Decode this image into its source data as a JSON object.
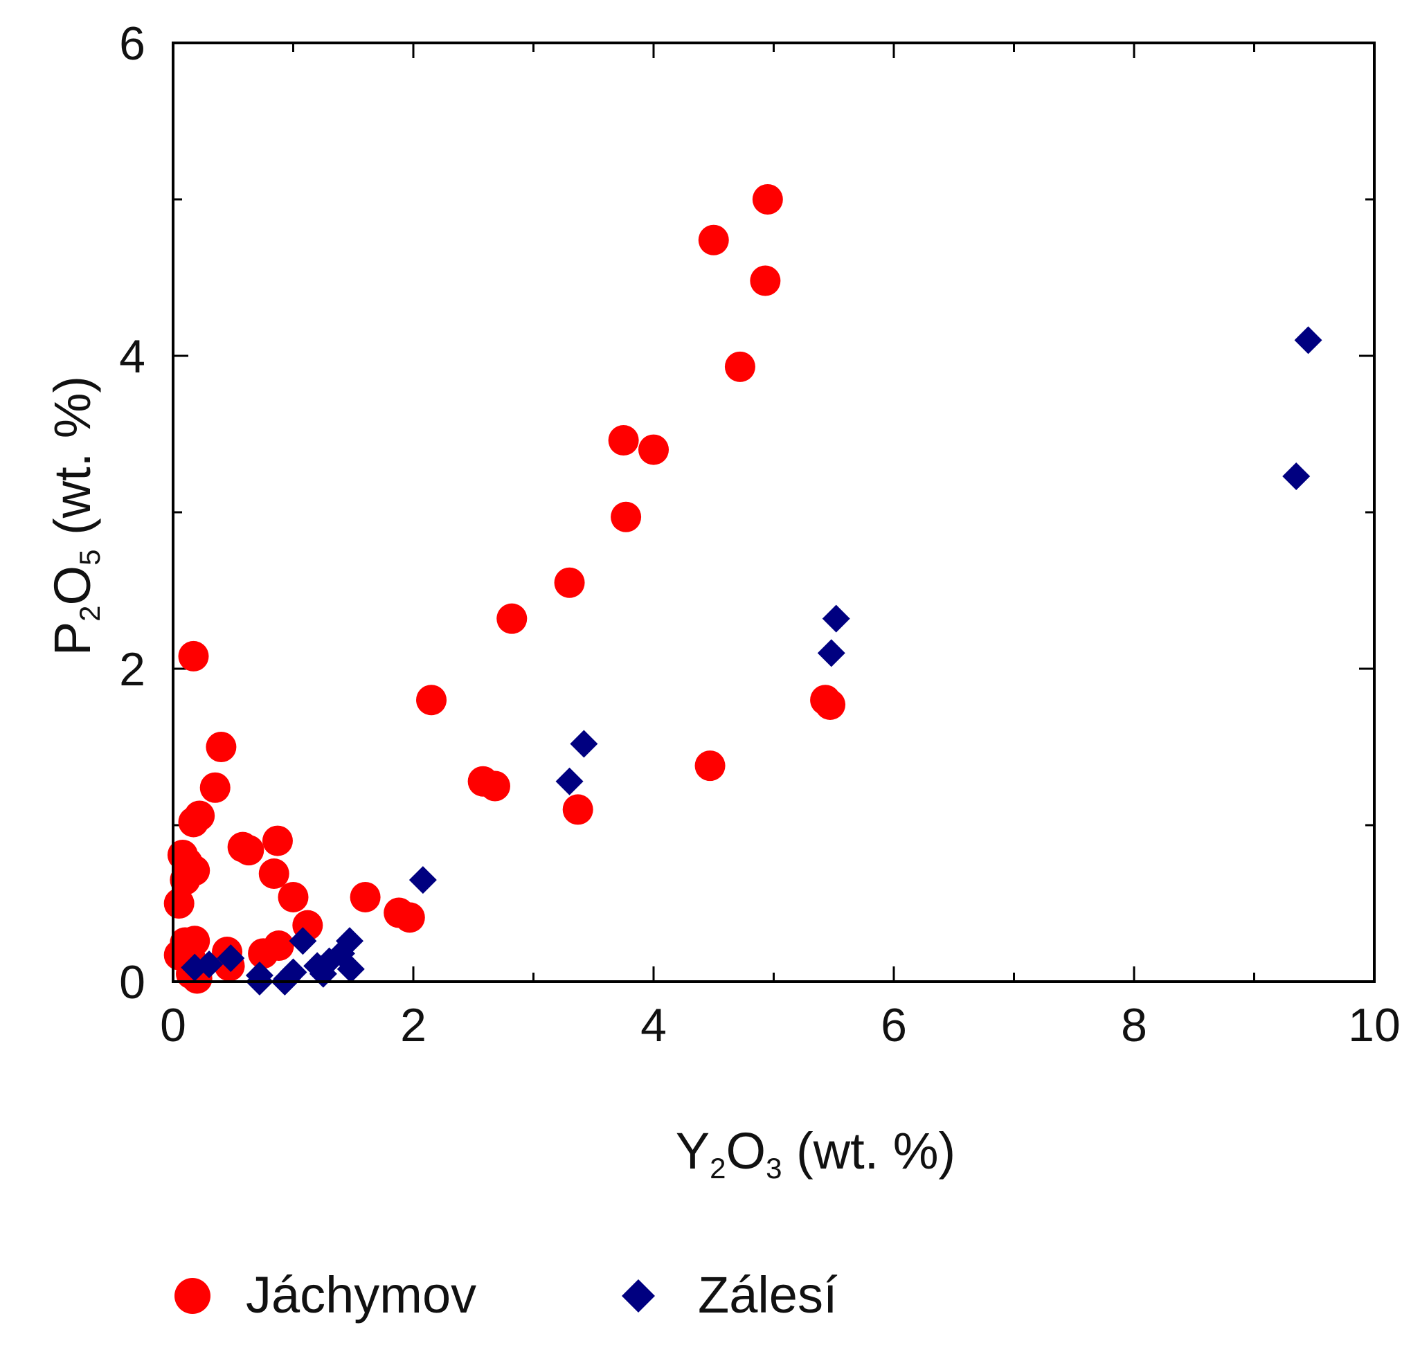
{
  "chart_data": {
    "type": "scatter",
    "title": "",
    "xlabel": {
      "base1": "Y",
      "sub1": "2",
      "base2": "O",
      "sub2": "3",
      "suffix": " (wt. %)"
    },
    "ylabel": {
      "base1": "P",
      "sub1": "2",
      "base2": "O",
      "sub2": "5",
      "suffix": " (wt. %)"
    },
    "xlim": [
      0,
      10
    ],
    "ylim": [
      0,
      6
    ],
    "x_major_ticks": [
      0,
      2,
      4,
      6,
      8,
      10
    ],
    "x_tick_labels": [
      "0",
      "2",
      "4",
      "6",
      "8",
      "10"
    ],
    "x_minor_ticks": [
      1,
      3,
      5,
      7,
      9
    ],
    "y_major_ticks": [
      0,
      2,
      4,
      6
    ],
    "y_tick_labels": [
      "0",
      "2",
      "4",
      "6"
    ],
    "y_minor_ticks": [
      1,
      3,
      5
    ],
    "grid": false,
    "legend_position": "bottom",
    "series": [
      {
        "name": "Jáchymov",
        "marker": "circle",
        "color": "#ff0000",
        "points": [
          [
            4.95,
            5.0
          ],
          [
            4.5,
            4.74
          ],
          [
            4.93,
            4.48
          ],
          [
            4.72,
            3.93
          ],
          [
            3.75,
            3.46
          ],
          [
            4.0,
            3.4
          ],
          [
            3.77,
            2.97
          ],
          [
            3.3,
            2.55
          ],
          [
            2.82,
            2.32
          ],
          [
            0.17,
            2.08
          ],
          [
            2.15,
            1.8
          ],
          [
            5.43,
            1.8
          ],
          [
            5.47,
            1.77
          ],
          [
            0.4,
            1.5
          ],
          [
            4.47,
            1.38
          ],
          [
            2.58,
            1.28
          ],
          [
            2.68,
            1.25
          ],
          [
            0.35,
            1.24
          ],
          [
            3.37,
            1.1
          ],
          [
            0.22,
            1.06
          ],
          [
            0.17,
            1.02
          ],
          [
            0.87,
            0.9
          ],
          [
            0.58,
            0.86
          ],
          [
            0.63,
            0.84
          ],
          [
            0.08,
            0.81
          ],
          [
            0.12,
            0.76
          ],
          [
            0.18,
            0.71
          ],
          [
            0.1,
            0.65
          ],
          [
            0.84,
            0.69
          ],
          [
            1.0,
            0.54
          ],
          [
            1.6,
            0.54
          ],
          [
            0.05,
            0.5
          ],
          [
            1.88,
            0.44
          ],
          [
            1.97,
            0.41
          ],
          [
            1.12,
            0.36
          ],
          [
            0.05,
            0.17
          ],
          [
            0.18,
            0.26
          ],
          [
            0.1,
            0.25
          ],
          [
            0.45,
            0.19
          ],
          [
            0.75,
            0.18
          ],
          [
            0.88,
            0.23
          ],
          [
            0.15,
            0.14
          ],
          [
            0.47,
            0.1
          ],
          [
            0.2,
            0.02
          ],
          [
            0.15,
            0.05
          ]
        ]
      },
      {
        "name": "Zálesí",
        "marker": "diamond",
        "color": "#000080",
        "points": [
          [
            9.45,
            4.1
          ],
          [
            9.35,
            3.23
          ],
          [
            5.52,
            2.32
          ],
          [
            5.48,
            2.1
          ],
          [
            3.42,
            1.52
          ],
          [
            3.3,
            1.28
          ],
          [
            2.08,
            0.65
          ],
          [
            1.08,
            0.26
          ],
          [
            1.47,
            0.26
          ],
          [
            1.4,
            0.18
          ],
          [
            0.48,
            0.15
          ],
          [
            1.3,
            0.13
          ],
          [
            0.3,
            0.11
          ],
          [
            0.18,
            0.09
          ],
          [
            1.2,
            0.1
          ],
          [
            1.48,
            0.08
          ],
          [
            1.0,
            0.06
          ],
          [
            1.25,
            0.05
          ],
          [
            0.72,
            0.04
          ],
          [
            0.95,
            0.02
          ],
          [
            0.72,
            0.0
          ],
          [
            0.93,
            0.0
          ]
        ]
      }
    ]
  }
}
